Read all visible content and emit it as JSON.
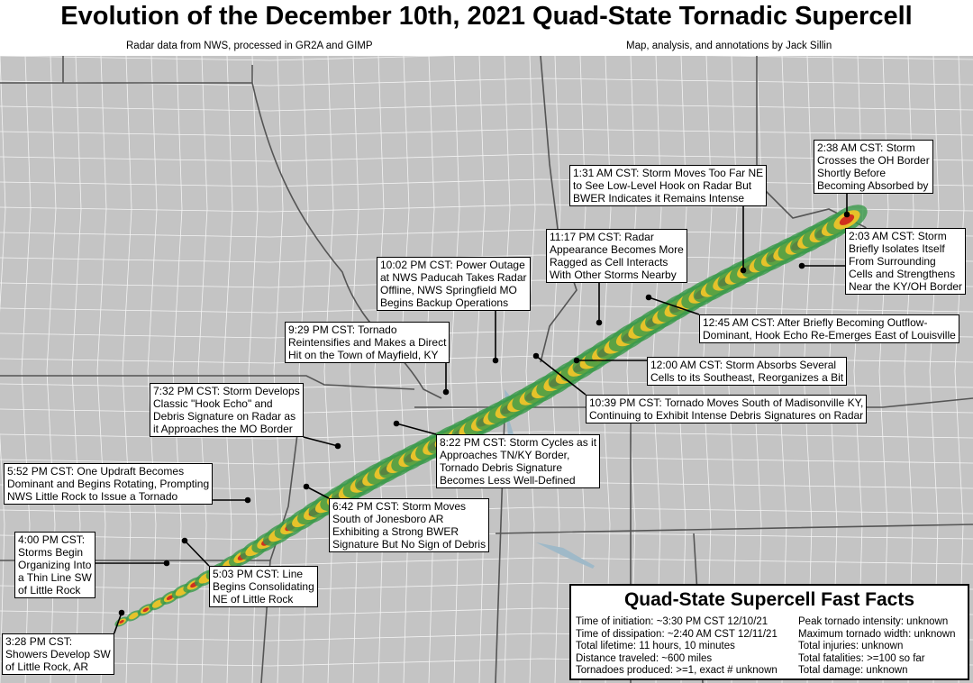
{
  "header": {
    "title": "Evolution of the December 10th, 2021 Quad-State Tornadic Supercell",
    "credit_left": "Radar data from NWS, processed in GR2A and GIMP",
    "credit_right": "Map, analysis, and annotations by Jack Sillin"
  },
  "annotations": [
    {
      "lines": [
        "2:38 AM CST: Storm",
        "Crosses the OH Border",
        "Shortly Before",
        "Becoming Absorbed by"
      ]
    },
    {
      "lines": [
        "1:31 AM CST: Storm Moves Too Far NE",
        "to See Low-Level Hook on Radar But",
        "BWER Indicates it Remains Intense"
      ]
    },
    {
      "lines": [
        "2:03 AM CST: Storm",
        "Briefly Isolates Itself",
        "From Surrounding",
        "Cells and Strengthens",
        "Near the KY/OH Border"
      ]
    },
    {
      "lines": [
        "11:17 PM CST: Radar",
        "Appearance Becomes More",
        "Ragged as Cell Interacts",
        "With Other Storms Nearby"
      ]
    },
    {
      "lines": [
        "10:02 PM CST: Power Outage",
        "at NWS Paducah Takes Radar",
        "Offline, NWS Springfield MO",
        "Begins Backup Operations"
      ]
    },
    {
      "lines": [
        "12:45 AM CST: After Briefly Becoming Outflow-",
        "Dominant, Hook Echo Re-Emerges East of Louisville"
      ]
    },
    {
      "lines": [
        "9:29 PM CST: Tornado",
        "Reintensifies and Makes a Direct",
        "Hit on the Town of Mayfield, KY"
      ]
    },
    {
      "lines": [
        "12:00 AM CST: Storm Absorbs Several",
        "Cells to its Southeast, Reorganizes a Bit"
      ]
    },
    {
      "lines": [
        "7:32 PM CST: Storm Develops",
        "Classic \"Hook Echo\" and",
        "Debris Signature on Radar as",
        "it Approaches the MO Border"
      ]
    },
    {
      "lines": [
        "10:39 PM CST: Tornado Moves South of Madisonville KY,",
        "Continuing to Exhibit Intense Debris Signatures on Radar"
      ]
    },
    {
      "lines": [
        "8:22 PM CST: Storm Cycles as it",
        "Approaches TN/KY Border,",
        "Tornado Debris Signature",
        "Becomes Less Well-Defined"
      ]
    },
    {
      "lines": [
        "5:52 PM CST: One Updraft Becomes",
        "Dominant and Begins Rotating, Prompting",
        "NWS Little Rock to Issue a Tornado"
      ]
    },
    {
      "lines": [
        "6:42 PM CST: Storm Moves",
        "South of Jonesboro AR",
        "Exhibiting a Strong BWER",
        "Signature But No Sign of Debris"
      ]
    },
    {
      "lines": [
        "4:00 PM CST:",
        "Storms Begin",
        "Organizing Into",
        "a Thin Line SW",
        "of Little Rock"
      ]
    },
    {
      "lines": [
        "5:03 PM CST: Line",
        "Begins Consolidating",
        "NE of Little Rock"
      ]
    },
    {
      "lines": [
        "3:28 PM CST:",
        "Showers Develop SW",
        "of Little Rock, AR"
      ]
    }
  ],
  "fast_facts": {
    "title": "Quad-State Supercell Fast Facts",
    "left": [
      "Time of initiation: ~3:30 PM CST 12/10/21",
      "Time of dissipation: ~2:40 AM CST 12/11/21",
      "Total lifetime: 11 hours, 10 minutes",
      "Distance traveled: ~600 miles",
      "Tornadoes produced: >=1, exact # unknown"
    ],
    "right": [
      "Peak tornado intensity: unknown",
      "Maximum tornado width: unknown",
      "Total injuries: unknown",
      "Total fatalities: >=100 so far",
      "Total damage: unknown"
    ]
  }
}
